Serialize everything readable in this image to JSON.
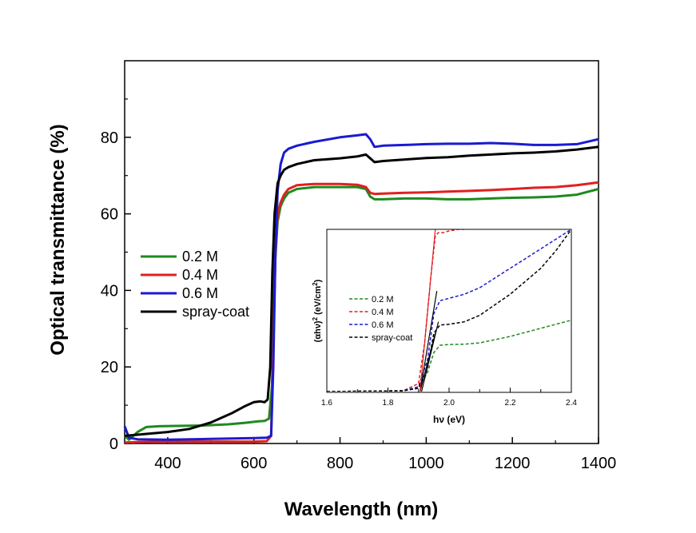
{
  "chart_data": [
    {
      "type": "line",
      "xlabel": "Wavelength (nm)",
      "ylabel": "Optical transmittance (%)",
      "xlim": [
        300,
        1400
      ],
      "ylim": [
        0,
        100
      ],
      "xticks": [
        400,
        600,
        800,
        1000,
        1200,
        1400
      ],
      "yticks": [
        0,
        20,
        40,
        60,
        80
      ],
      "legend": "center-left",
      "grid": false,
      "series": [
        {
          "name": "0.2 M",
          "color": "#1e8a1e",
          "x": [
            300,
            310,
            330,
            350,
            380,
            420,
            480,
            540,
            580,
            610,
            625,
            635,
            642,
            648,
            655,
            662,
            670,
            680,
            700,
            740,
            800,
            840,
            860,
            870,
            880,
            900,
            950,
            1000,
            1050,
            1100,
            1150,
            1200,
            1250,
            1300,
            1350,
            1400
          ],
          "y": [
            2,
            1,
            3,
            4.3,
            4.5,
            4.6,
            4.7,
            5.0,
            5.4,
            5.8,
            5.9,
            6.5,
            15,
            45,
            58,
            62,
            64,
            65.5,
            66.5,
            67,
            67,
            67,
            66.5,
            64.5,
            63.8,
            63.8,
            64,
            64,
            63.8,
            63.8,
            64,
            64.2,
            64.3,
            64.5,
            65,
            66.5
          ]
        },
        {
          "name": "0.4 M",
          "color": "#e02020",
          "x": [
            300,
            310,
            330,
            400,
            500,
            600,
            630,
            640,
            645,
            650,
            655,
            662,
            670,
            680,
            700,
            740,
            800,
            840,
            860,
            870,
            880,
            900,
            950,
            1000,
            1050,
            1100,
            1150,
            1200,
            1250,
            1300,
            1350,
            1400
          ],
          "y": [
            0.3,
            0.3,
            0.4,
            0.5,
            0.5,
            0.5,
            0.6,
            2,
            25,
            50,
            60,
            63,
            65,
            66.5,
            67.5,
            67.8,
            67.8,
            67.6,
            67,
            65.5,
            65.2,
            65.3,
            65.5,
            65.6,
            65.8,
            66,
            66.2,
            66.5,
            66.8,
            67,
            67.5,
            68.2
          ]
        },
        {
          "name": "0.6 M",
          "color": "#1a1ad0",
          "x": [
            300,
            310,
            330,
            400,
            500,
            600,
            630,
            640,
            645,
            650,
            655,
            662,
            670,
            680,
            700,
            740,
            800,
            840,
            860,
            870,
            880,
            900,
            950,
            1000,
            1050,
            1100,
            1150,
            1200,
            1250,
            1300,
            1350,
            1400
          ],
          "y": [
            4.5,
            1.5,
            1.1,
            1.0,
            1.2,
            1.4,
            1.5,
            2,
            20,
            50,
            66,
            73,
            76,
            77,
            77.8,
            78.8,
            80,
            80.5,
            80.8,
            79.5,
            77.5,
            77.8,
            78,
            78.2,
            78.3,
            78.3,
            78.5,
            78.3,
            78,
            78,
            78.2,
            79.5
          ]
        },
        {
          "name": "spray-coat",
          "color": "#000000",
          "x": [
            300,
            320,
            350,
            400,
            450,
            500,
            550,
            580,
            600,
            615,
            625,
            632,
            638,
            643,
            648,
            655,
            662,
            670,
            680,
            700,
            740,
            800,
            840,
            860,
            870,
            880,
            900,
            950,
            1000,
            1050,
            1100,
            1150,
            1200,
            1250,
            1300,
            1350,
            1400
          ],
          "y": [
            2,
            2.2,
            2.5,
            3,
            3.8,
            5.5,
            8,
            9.8,
            10.8,
            11,
            10.8,
            11.5,
            20,
            45,
            60,
            68,
            70,
            71.5,
            72.2,
            73,
            74,
            74.5,
            75,
            75.5,
            74.5,
            73.5,
            73.8,
            74.2,
            74.6,
            74.8,
            75.2,
            75.5,
            75.8,
            76,
            76.3,
            76.8,
            77.5
          ]
        }
      ]
    },
    {
      "type": "line",
      "xlabel": "hν (eV)",
      "ylabel_main": "(αhν)",
      "ylabel_sup": "2",
      "ylabel_unit": " (eV/cm",
      "ylabel_unit_sup": "2",
      "ylabel_end": ")",
      "xlim": [
        1.6,
        2.4
      ],
      "ylim": [
        0,
        1
      ],
      "xticks": [
        "1.6",
        "1.8",
        "2.0",
        "2.2",
        "2.4"
      ],
      "yticks_shown": false,
      "legend": "center-left",
      "line_style": "dashed",
      "series": [
        {
          "name": "0.2 M",
          "color": "#1e8a1e",
          "x": [
            1.6,
            1.85,
            1.9,
            1.93,
            1.95,
            1.97,
            2.0,
            2.05,
            2.1,
            2.2,
            2.3,
            2.4
          ],
          "y": [
            0.0,
            0.005,
            0.02,
            0.12,
            0.24,
            0.285,
            0.29,
            0.292,
            0.3,
            0.34,
            0.39,
            0.44
          ]
        },
        {
          "name": "0.4 M",
          "color": "#e02020",
          "x": [
            1.6,
            1.85,
            1.9,
            1.92,
            1.94,
            1.955,
            1.965,
            1.98,
            2.0,
            2.03,
            2.05
          ],
          "y": [
            0.0,
            0.005,
            0.05,
            0.3,
            0.7,
            0.96,
            0.98,
            0.98,
            0.99,
            1.0,
            1.0
          ]
        },
        {
          "name": "0.6 M",
          "color": "#1a1ad0",
          "x": [
            1.6,
            1.85,
            1.9,
            1.93,
            1.95,
            1.97,
            2.0,
            2.05,
            2.1,
            2.2,
            2.3,
            2.4
          ],
          "y": [
            0.0,
            0.005,
            0.03,
            0.2,
            0.48,
            0.56,
            0.575,
            0.6,
            0.64,
            0.76,
            0.88,
            1.0
          ]
        },
        {
          "name": "spray-coat",
          "color": "#000000",
          "x": [
            1.6,
            1.85,
            1.9,
            1.93,
            1.95,
            1.97,
            2.0,
            2.05,
            2.1,
            2.2,
            2.3,
            2.35,
            2.4
          ],
          "y": [
            0.0,
            0.005,
            0.02,
            0.15,
            0.36,
            0.41,
            0.415,
            0.43,
            0.47,
            0.6,
            0.76,
            0.87,
            1.0
          ]
        }
      ],
      "tangents": [
        {
          "color": "#000000",
          "x": [
            1.905,
            1.955
          ],
          "y": [
            0.0,
            0.36
          ]
        },
        {
          "color": "#000000",
          "x": [
            1.905,
            1.96
          ],
          "y": [
            0.0,
            0.62
          ]
        },
        {
          "color": "#000000",
          "x": [
            1.91,
            1.965
          ],
          "y": [
            0.0,
            0.43
          ]
        },
        {
          "color": "#e02020",
          "x": [
            1.905,
            1.955
          ],
          "y": [
            0.0,
            1.0
          ]
        }
      ]
    }
  ]
}
